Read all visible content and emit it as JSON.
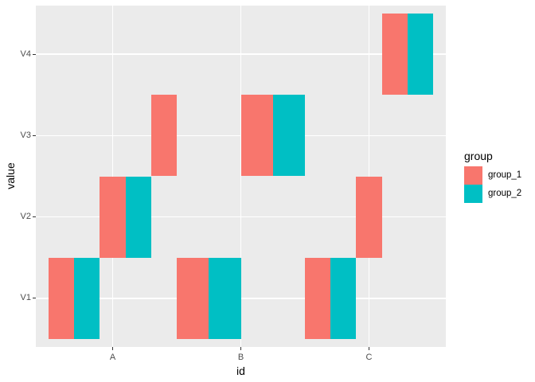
{
  "figure": {
    "background": "#FFFFFF",
    "panel_background": "#EBEBEB",
    "grid_color": "#FFFFFF",
    "tick_color": "#333333",
    "tick_label_color": "#4D4D4D",
    "axis_title_color": "#000000"
  },
  "chart_data": {
    "type": "heatmap",
    "geom": "dodged-tiles (ggplot2 geom_tile with position dodge)",
    "title": "",
    "xlabel": "id",
    "ylabel": "value",
    "x_categories": [
      "A",
      "B",
      "C"
    ],
    "y_categories": [
      "V1",
      "V2",
      "V3",
      "V4"
    ],
    "x_tick_positions": [
      1,
      2,
      3
    ],
    "y_tick_positions": [
      1,
      2,
      3,
      4
    ],
    "x_range": [
      0.4,
      3.6
    ],
    "y_range": [
      0.4,
      4.6
    ],
    "grid": "major-only",
    "tile_height_units": 1.0,
    "legend": {
      "title": "group",
      "position": "right",
      "entries": [
        {
          "label": "group_1",
          "color": "#F8766D"
        },
        {
          "label": "group_2",
          "color": "#00BFC4"
        }
      ]
    },
    "tiles": [
      {
        "id": "A",
        "value": "V1",
        "group": "group_1",
        "x": [
          0.5,
          0.7
        ]
      },
      {
        "id": "A",
        "value": "V1",
        "group": "group_2",
        "x": [
          0.7,
          0.9
        ]
      },
      {
        "id": "A",
        "value": "V2",
        "group": "group_1",
        "x": [
          0.9,
          1.1
        ]
      },
      {
        "id": "A",
        "value": "V2",
        "group": "group_2",
        "x": [
          1.1,
          1.3
        ]
      },
      {
        "id": "A",
        "value": "V3",
        "group": "group_1",
        "x": [
          1.3,
          1.5
        ]
      },
      {
        "id": "B",
        "value": "V1",
        "group": "group_1",
        "x": [
          1.5,
          1.75
        ]
      },
      {
        "id": "B",
        "value": "V1",
        "group": "group_2",
        "x": [
          1.75,
          2.0
        ]
      },
      {
        "id": "B",
        "value": "V3",
        "group": "group_1",
        "x": [
          2.0,
          2.25
        ]
      },
      {
        "id": "B",
        "value": "V3",
        "group": "group_2",
        "x": [
          2.25,
          2.5
        ]
      },
      {
        "id": "C",
        "value": "V1",
        "group": "group_1",
        "x": [
          2.5,
          2.7
        ]
      },
      {
        "id": "C",
        "value": "V1",
        "group": "group_2",
        "x": [
          2.7,
          2.9
        ]
      },
      {
        "id": "C",
        "value": "V2",
        "group": "group_1",
        "x": [
          2.9,
          3.1
        ]
      },
      {
        "id": "C",
        "value": "V4",
        "group": "group_1",
        "x": [
          3.1,
          3.3
        ]
      },
      {
        "id": "C",
        "value": "V4",
        "group": "group_2",
        "x": [
          3.3,
          3.5
        ]
      }
    ]
  }
}
